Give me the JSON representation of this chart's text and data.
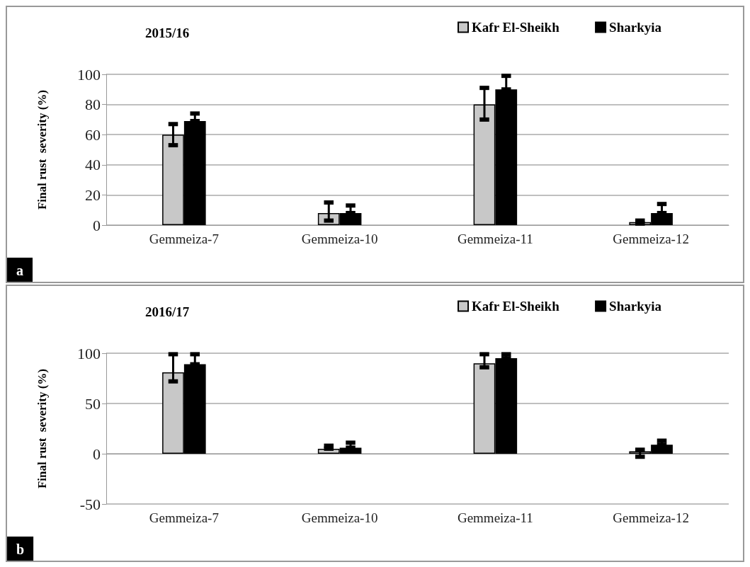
{
  "chart_data": [
    {
      "type": "bar",
      "title": "2015/16",
      "ylabel": "Final rust  severity (%)",
      "annotations": [
        "a"
      ],
      "categories": [
        "Gemmeiza-7",
        "Gemmeiza-10",
        "Gemmeiza-11",
        "Gemmeiza-12"
      ],
      "ylim": [
        0,
        100
      ],
      "yticks": [
        0,
        20,
        40,
        60,
        80,
        100
      ],
      "grid": "y",
      "legend": "top right",
      "series": [
        {
          "name": "Kafr El-Sheikh",
          "color": "#c8c8c8",
          "values": [
            60,
            8,
            80,
            2
          ],
          "errors": [
            [
              53,
              67
            ],
            [
              3,
              15
            ],
            [
              70,
              91
            ],
            [
              1,
              3
            ]
          ]
        },
        {
          "name": "Sharkyia",
          "color": "#000000",
          "values": [
            69,
            8,
            90,
            8
          ],
          "errors": [
            [
              69,
              74
            ],
            [
              8,
              13
            ],
            [
              90,
              99
            ],
            [
              8,
              14
            ]
          ]
        }
      ]
    },
    {
      "type": "bar",
      "title": "2016/17",
      "ylabel": "Final rust  severity (%)",
      "annotations": [
        "b"
      ],
      "categories": [
        "Gemmeiza-7",
        "Gemmeiza-10",
        "Gemmeiza-11",
        "Gemmeiza-12"
      ],
      "ylim": [
        -50,
        100
      ],
      "yticks": [
        -50,
        0,
        50,
        100
      ],
      "grid": "y",
      "legend": "top right",
      "series": [
        {
          "name": "Kafr El-Sheikh",
          "color": "#c8c8c8",
          "values": [
            81,
            5,
            90,
            2.5
          ],
          "errors": [
            [
              72,
              99
            ],
            [
              5,
              8
            ],
            [
              86,
              99
            ],
            [
              -3,
              4
            ]
          ]
        },
        {
          "name": "Sharkyia",
          "color": "#000000",
          "values": [
            89,
            6,
            95,
            9
          ],
          "errors": [
            [
              89,
              99
            ],
            [
              6,
              11
            ],
            [
              95,
              99
            ],
            [
              9,
              13
            ]
          ]
        }
      ]
    }
  ]
}
